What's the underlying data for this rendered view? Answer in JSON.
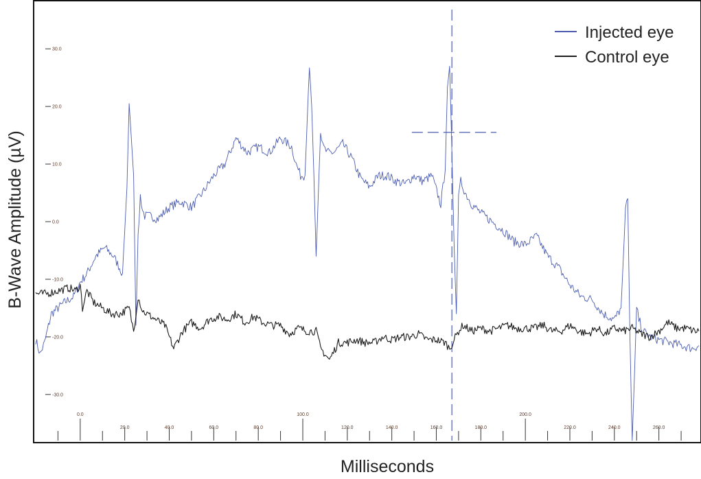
{
  "chart_data": {
    "type": "line",
    "title": "",
    "xlabel": "Milliseconds",
    "ylabel": "B-Wave Amplitude (µV)",
    "xlim": [
      -20,
      278
    ],
    "ylim": [
      -38,
      38
    ],
    "x_tick_labels": [
      "0.0",
      "20.0",
      "40.0",
      "60.0",
      "80.0",
      "100.0",
      "120.0",
      "140.0",
      "160.0",
      "180.0",
      "200.0",
      "220.0",
      "240.0",
      "260.0"
    ],
    "y_tick_labels": [
      "30.0",
      "20.0",
      "10.0",
      "0.0",
      "-10.0",
      "-20.0",
      "-30.0"
    ],
    "y_tick_values": [
      30,
      20,
      10,
      0,
      -10,
      -20,
      -30
    ],
    "legend_position": "top-right",
    "series": [
      {
        "name": "Injected eye",
        "color": "#4a5bb0",
        "x": [
          -20,
          -18,
          -16,
          -13,
          -10,
          -7,
          -3,
          0,
          3,
          7,
          11,
          15,
          19,
          21,
          22,
          24,
          25,
          26,
          27,
          28,
          29,
          31,
          35,
          40,
          45,
          50,
          55,
          60,
          65,
          70,
          75,
          80,
          85,
          90,
          95,
          97,
          99,
          101,
          103,
          104,
          105,
          106,
          107,
          108,
          109,
          111,
          114,
          118,
          122,
          126,
          130,
          134,
          138,
          142,
          146,
          150,
          154,
          158,
          162,
          164,
          165,
          166,
          167,
          168,
          169,
          170,
          171,
          173,
          176,
          180,
          185,
          190,
          195,
          200,
          205,
          210,
          215,
          220,
          225,
          230,
          235,
          240,
          243,
          245,
          246,
          247,
          248,
          249,
          250,
          251,
          253,
          256,
          260,
          265,
          270,
          275,
          278
        ],
        "y": [
          -20.5,
          -23,
          -21,
          -16,
          -15,
          -14,
          -13,
          -10.5,
          -9,
          -6,
          -4.5,
          -6,
          -9,
          6,
          20.5,
          8,
          -18,
          -3,
          4.5,
          2,
          1,
          1,
          0.5,
          2.5,
          3.5,
          2.5,
          5,
          8,
          10,
          14.5,
          12,
          13,
          12,
          14.5,
          13,
          10,
          8,
          8,
          27.5,
          20,
          8,
          -6,
          5,
          16,
          13,
          12,
          12,
          13.5,
          11,
          7.5,
          6,
          8,
          8,
          7,
          6.5,
          8,
          7,
          8,
          3,
          9,
          24,
          27,
          12,
          -4,
          -16,
          4,
          7,
          5,
          3,
          1.5,
          0,
          -1.5,
          -3.5,
          -4,
          -2.5,
          -6,
          -8,
          -11,
          -13,
          -13.5,
          -16,
          -17,
          -15,
          2,
          4,
          -20,
          -38,
          -27,
          -15,
          -17,
          -19,
          -20,
          -20.5,
          -21,
          -21.5,
          -22,
          -21.5
        ]
      },
      {
        "name": "Control eye",
        "color": "#1a1a1a",
        "x": [
          -20,
          -15,
          -10,
          -5,
          -2,
          0,
          1,
          3,
          6,
          10,
          14,
          18,
          22,
          24,
          26,
          28,
          30,
          34,
          38,
          42,
          46,
          50,
          54,
          58,
          62,
          66,
          70,
          74,
          78,
          82,
          86,
          90,
          94,
          98,
          102,
          106,
          108,
          110,
          112,
          116,
          120,
          124,
          128,
          132,
          136,
          140,
          144,
          148,
          152,
          156,
          160,
          164,
          166,
          168,
          170,
          172,
          176,
          180,
          184,
          188,
          192,
          196,
          200,
          204,
          208,
          212,
          216,
          220,
          224,
          228,
          232,
          236,
          240,
          244,
          248,
          252,
          256,
          260,
          264,
          268,
          272,
          276,
          278
        ],
        "y": [
          -12.5,
          -12.5,
          -12,
          -11.5,
          -12,
          -11,
          -15,
          -12,
          -14,
          -15,
          -16,
          -16,
          -15,
          -19,
          -13,
          -15.5,
          -16,
          -17,
          -18,
          -22,
          -19,
          -17.5,
          -18.5,
          -17,
          -16.5,
          -17,
          -16,
          -17.5,
          -16.5,
          -17.5,
          -18,
          -18,
          -19.5,
          -18.5,
          -19,
          -19,
          -22,
          -23,
          -24,
          -21,
          -21,
          -20.5,
          -21,
          -21,
          -20,
          -20.5,
          -20,
          -20,
          -19.5,
          -20.5,
          -20.5,
          -21,
          -22,
          -20.5,
          -19,
          -18,
          -19,
          -18.5,
          -19,
          -18.5,
          -18,
          -18.5,
          -18.5,
          -18.5,
          -18,
          -19,
          -19,
          -18,
          -19,
          -19.5,
          -18.5,
          -19.5,
          -18.5,
          -19,
          -18.5,
          -19.5,
          -20,
          -19,
          -17.5,
          -18.5,
          -18.5,
          -19,
          -19
        ]
      }
    ],
    "annotations": {
      "vertical_dashed_x": 167,
      "horizontal_dashed": {
        "x1": 149,
        "x2": 187,
        "y": 15.5
      }
    }
  }
}
